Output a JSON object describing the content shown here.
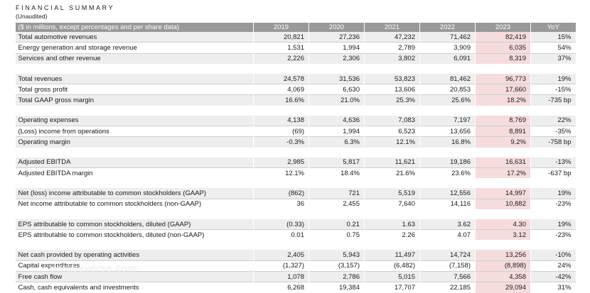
{
  "header": {
    "title": "FINANCIAL SUMMARY",
    "subtitle": "(Unaudited)"
  },
  "table": {
    "label_header": "($ in millions, except percentages and per share data)",
    "years": [
      "2019",
      "2020",
      "2021",
      "2022",
      "2023"
    ],
    "yoy_header": "YoY",
    "groups": [
      [
        {
          "label": "Total automotive revenues",
          "values": [
            "20,821",
            "27,236",
            "47,232",
            "71,462",
            "82,419"
          ],
          "yoy": "15%"
        },
        {
          "label": "Energy generation and storage revenue",
          "values": [
            "1,531",
            "1,994",
            "2,789",
            "3,909",
            "6,035"
          ],
          "yoy": "54%"
        },
        {
          "label": "Services and other revenue",
          "values": [
            "2,226",
            "2,306",
            "3,802",
            "6,091",
            "8,319"
          ],
          "yoy": "37%"
        }
      ],
      [
        {
          "label": "Total revenues",
          "values": [
            "24,578",
            "31,536",
            "53,823",
            "81,462",
            "96,773"
          ],
          "yoy": "19%"
        },
        {
          "label": "Total gross profit",
          "values": [
            "4,069",
            "6,630",
            "13,606",
            "20,853",
            "17,660"
          ],
          "yoy": "-15%"
        },
        {
          "label": "Total GAAP gross margin",
          "values": [
            "16.6%",
            "21.0%",
            "25.3%",
            "25.6%",
            "18.2%"
          ],
          "yoy": "-735 bp"
        }
      ],
      [
        {
          "label": "Operating expenses",
          "values": [
            "4,138",
            "4,636",
            "7,083",
            "7,197",
            "8,769"
          ],
          "yoy": "22%"
        },
        {
          "label": "(Loss) income from operations",
          "values": [
            "(69)",
            "1,994",
            "6,523",
            "13,656",
            "8,891"
          ],
          "yoy": "-35%"
        },
        {
          "label": "Operating margin",
          "values": [
            "-0.3%",
            "6.3%",
            "12.1%",
            "16.8%",
            "9.2%"
          ],
          "yoy": "-758 bp"
        }
      ],
      [
        {
          "label": "Adjusted EBITDA",
          "values": [
            "2,985",
            "5,817",
            "11,621",
            "19,186",
            "16,631"
          ],
          "yoy": "-13%"
        },
        {
          "label": "Adjusted EBITDA margin",
          "values": [
            "12.1%",
            "18.4%",
            "21.6%",
            "23.6%",
            "17.2%"
          ],
          "yoy": "-637 bp"
        }
      ],
      [
        {
          "label": "Net (loss) income attributable to common stockholders (GAAP)",
          "values": [
            "(862)",
            "721",
            "5,519",
            "12,556",
            "14,997"
          ],
          "yoy": "19%"
        },
        {
          "label": "Net income attributable to common stockholders (non-GAAP)",
          "values": [
            "36",
            "2,455",
            "7,640",
            "14,116",
            "10,882"
          ],
          "yoy": "-23%"
        }
      ],
      [
        {
          "label": "EPS attributable to common stockholders, diluted (GAAP)",
          "values": [
            "(0.33)",
            "0.21",
            "1.63",
            "3.62",
            "4.30"
          ],
          "yoy": "19%"
        },
        {
          "label": "EPS attributable to common stockholders, diluted (non-GAAP)",
          "values": [
            "0.01",
            "0.75",
            "2.26",
            "4.07",
            "3.12"
          ],
          "yoy": "-23%"
        }
      ],
      [
        {
          "label": "Net cash provided by operating activities",
          "values": [
            "2,405",
            "5,943",
            "11,497",
            "14,724",
            "13,256"
          ],
          "yoy": "-10%"
        },
        {
          "label": "Capital expenditures",
          "values": [
            "(1,327)",
            "(3,157)",
            "(6,482)",
            "(7,158)",
            "(8,898)"
          ],
          "yoy": "24%"
        },
        {
          "label": "Free cash flow",
          "values": [
            "1,078",
            "2,786",
            "5,015",
            "7,566",
            "4,358"
          ],
          "yoy": "-42%"
        },
        {
          "label": "Cash, cash equivalents and investments",
          "values": [
            "6,268",
            "19,384",
            "17,707",
            "22,185",
            "29,094"
          ],
          "yoy": "31%"
        }
      ]
    ]
  },
  "watermark": "databaverse.com",
  "colors": {
    "header_bg": "#999999",
    "band_bg": "#eeeeee",
    "highlight_2023": "#f6dcdd"
  }
}
